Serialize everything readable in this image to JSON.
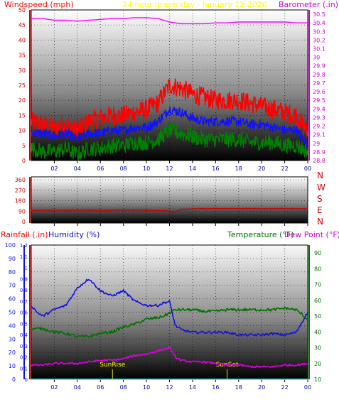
{
  "chart_data": [
    {
      "type": "line",
      "title": "24 hour graph day - January 12 2026",
      "ylabel": "Windspeed (mph)",
      "y2label": "Barometer (.in)",
      "ylim": [
        0,
        50
      ],
      "y2lim": [
        28.8,
        30.55
      ],
      "yticks": [
        0,
        5,
        10,
        15,
        20,
        25,
        30,
        35,
        40,
        45,
        50
      ],
      "y2ticks": [
        "28.8",
        "28.9",
        "29",
        "29.1",
        "29.2",
        "29.3",
        "29.4",
        "29.5",
        "29.6",
        "29.7",
        "29.8",
        "29.9",
        "30",
        "30.1",
        "30.2",
        "30.3",
        "30.4",
        "30.5"
      ],
      "xticks": [
        "02",
        "04",
        "06",
        "08",
        "10",
        "12",
        "14",
        "16",
        "18",
        "20",
        "22",
        "00"
      ],
      "x": [
        0,
        1,
        2,
        3,
        4,
        5,
        6,
        7,
        8,
        9,
        10,
        11,
        12,
        13,
        14,
        15,
        16,
        17,
        18,
        19,
        20,
        21,
        22,
        23,
        24
      ],
      "series": [
        {
          "role": "gust",
          "color": "#ff0000",
          "values": [
            13,
            12,
            11,
            12,
            10,
            13,
            14,
            15,
            15,
            16,
            17,
            19,
            25,
            24,
            22,
            21,
            20,
            20,
            20,
            19,
            18,
            17,
            16,
            15,
            9
          ]
        },
        {
          "role": "average",
          "color": "#1010ff",
          "values": [
            9,
            9,
            8,
            9,
            7,
            9,
            9,
            10,
            10,
            11,
            11,
            13,
            17,
            16,
            14,
            13,
            13,
            13,
            13,
            12,
            12,
            11,
            10,
            10,
            5
          ]
        },
        {
          "role": "minimum",
          "color": "#008000",
          "values": [
            4,
            3,
            3,
            4,
            2,
            4,
            4,
            5,
            5,
            6,
            6,
            7,
            10,
            9,
            8,
            7,
            7,
            7,
            7,
            6,
            6,
            6,
            5,
            5,
            3
          ]
        },
        {
          "role": "barometer",
          "axis": "y2",
          "color": "#ff00ff",
          "values": [
            30.45,
            30.45,
            30.43,
            30.43,
            30.42,
            30.43,
            30.44,
            30.45,
            30.45,
            30.46,
            30.46,
            30.45,
            30.41,
            30.39,
            30.39,
            30.39,
            30.4,
            30.4,
            30.41,
            30.41,
            30.41,
            30.41,
            30.41,
            30.4,
            30.4
          ]
        }
      ]
    },
    {
      "type": "line",
      "yticks": [
        0,
        90,
        180,
        270,
        360
      ],
      "ylim": [
        0,
        360
      ],
      "compass": [
        "N",
        "W",
        "S",
        "E",
        "N"
      ],
      "xticks": [
        "02",
        "04",
        "06",
        "08",
        "10",
        "12",
        "14",
        "16",
        "18",
        "20",
        "22",
        "00"
      ],
      "x": [
        0,
        2,
        4,
        6,
        8,
        10,
        12,
        12.5,
        13,
        14,
        16,
        18,
        20,
        22,
        24
      ],
      "series": [
        {
          "role": "wind-direction",
          "color": "#cc0000",
          "values": [
            95,
            97,
            98,
            97,
            99,
            98,
            92,
            80,
            107,
            110,
            112,
            112,
            111,
            112,
            110
          ]
        }
      ]
    },
    {
      "type": "line",
      "ylabel": "Rainfall (.in)",
      "ylabel2": "Humidity (%)",
      "y2label": "Temperature (°F)",
      "y2label2": "Dew Point (°F)",
      "rain_ticks": [
        "0",
        "0.1",
        "0.2",
        "0.3",
        "0.4",
        "0.5",
        "0.6",
        "0.7",
        "0.8",
        "0.9",
        "1",
        "1.1",
        "1.2"
      ],
      "hum_ticks": [
        0,
        10,
        20,
        30,
        40,
        50,
        60,
        70,
        80,
        90,
        100
      ],
      "temp_ticks": [
        10,
        20,
        30,
        40,
        50,
        60,
        70,
        80,
        90
      ],
      "ylim": [
        0,
        100
      ],
      "y2lim": [
        10,
        95
      ],
      "xticks": [
        "02",
        "04",
        "06",
        "08",
        "10",
        "12",
        "14",
        "16",
        "18",
        "20",
        "22",
        "00"
      ],
      "x": [
        0,
        0.5,
        1,
        2,
        3,
        4,
        5,
        6,
        7,
        8,
        9,
        10,
        11,
        11.5,
        12,
        12.5,
        13,
        14,
        15,
        16,
        17,
        18,
        19,
        20,
        21,
        22,
        23,
        24
      ],
      "series": [
        {
          "role": "humidity",
          "axis": "y",
          "color": "#1010e0",
          "values": [
            55,
            50,
            47,
            52,
            55,
            68,
            75,
            66,
            62,
            66,
            58,
            55,
            55,
            57,
            58,
            40,
            37,
            35,
            35,
            35,
            35,
            33,
            33,
            33,
            34,
            33,
            35,
            50
          ]
        },
        {
          "role": "temperature",
          "axis": "y2",
          "color": "#007000",
          "values": [
            42,
            42,
            42,
            40,
            39,
            37,
            37,
            39,
            40,
            43,
            45,
            48,
            49,
            50,
            52,
            54,
            54,
            54,
            53,
            53,
            54,
            54,
            54,
            54,
            54,
            55,
            54,
            48
          ]
        },
        {
          "role": "dewpoint",
          "axis": "y2",
          "color": "#e000e0",
          "values": [
            19,
            19,
            19,
            20,
            20,
            20,
            21,
            22,
            22,
            23,
            25,
            26,
            28,
            29,
            30,
            24,
            22,
            21,
            21,
            20,
            19,
            19,
            18,
            18,
            18,
            19,
            19,
            20
          ]
        },
        {
          "role": "rainfall",
          "axis": "rain",
          "color": "#00ffff",
          "values": [
            0,
            0,
            0,
            0,
            0,
            0,
            0,
            0,
            0,
            0,
            0,
            0,
            0,
            0,
            0,
            0,
            0,
            0,
            0,
            0,
            0,
            0,
            0,
            0,
            0,
            0,
            0,
            0
          ]
        }
      ],
      "annotations": [
        {
          "text": "SunRise",
          "x": 7.05
        },
        {
          "text": "SunSet",
          "x": 17.0
        }
      ]
    }
  ]
}
